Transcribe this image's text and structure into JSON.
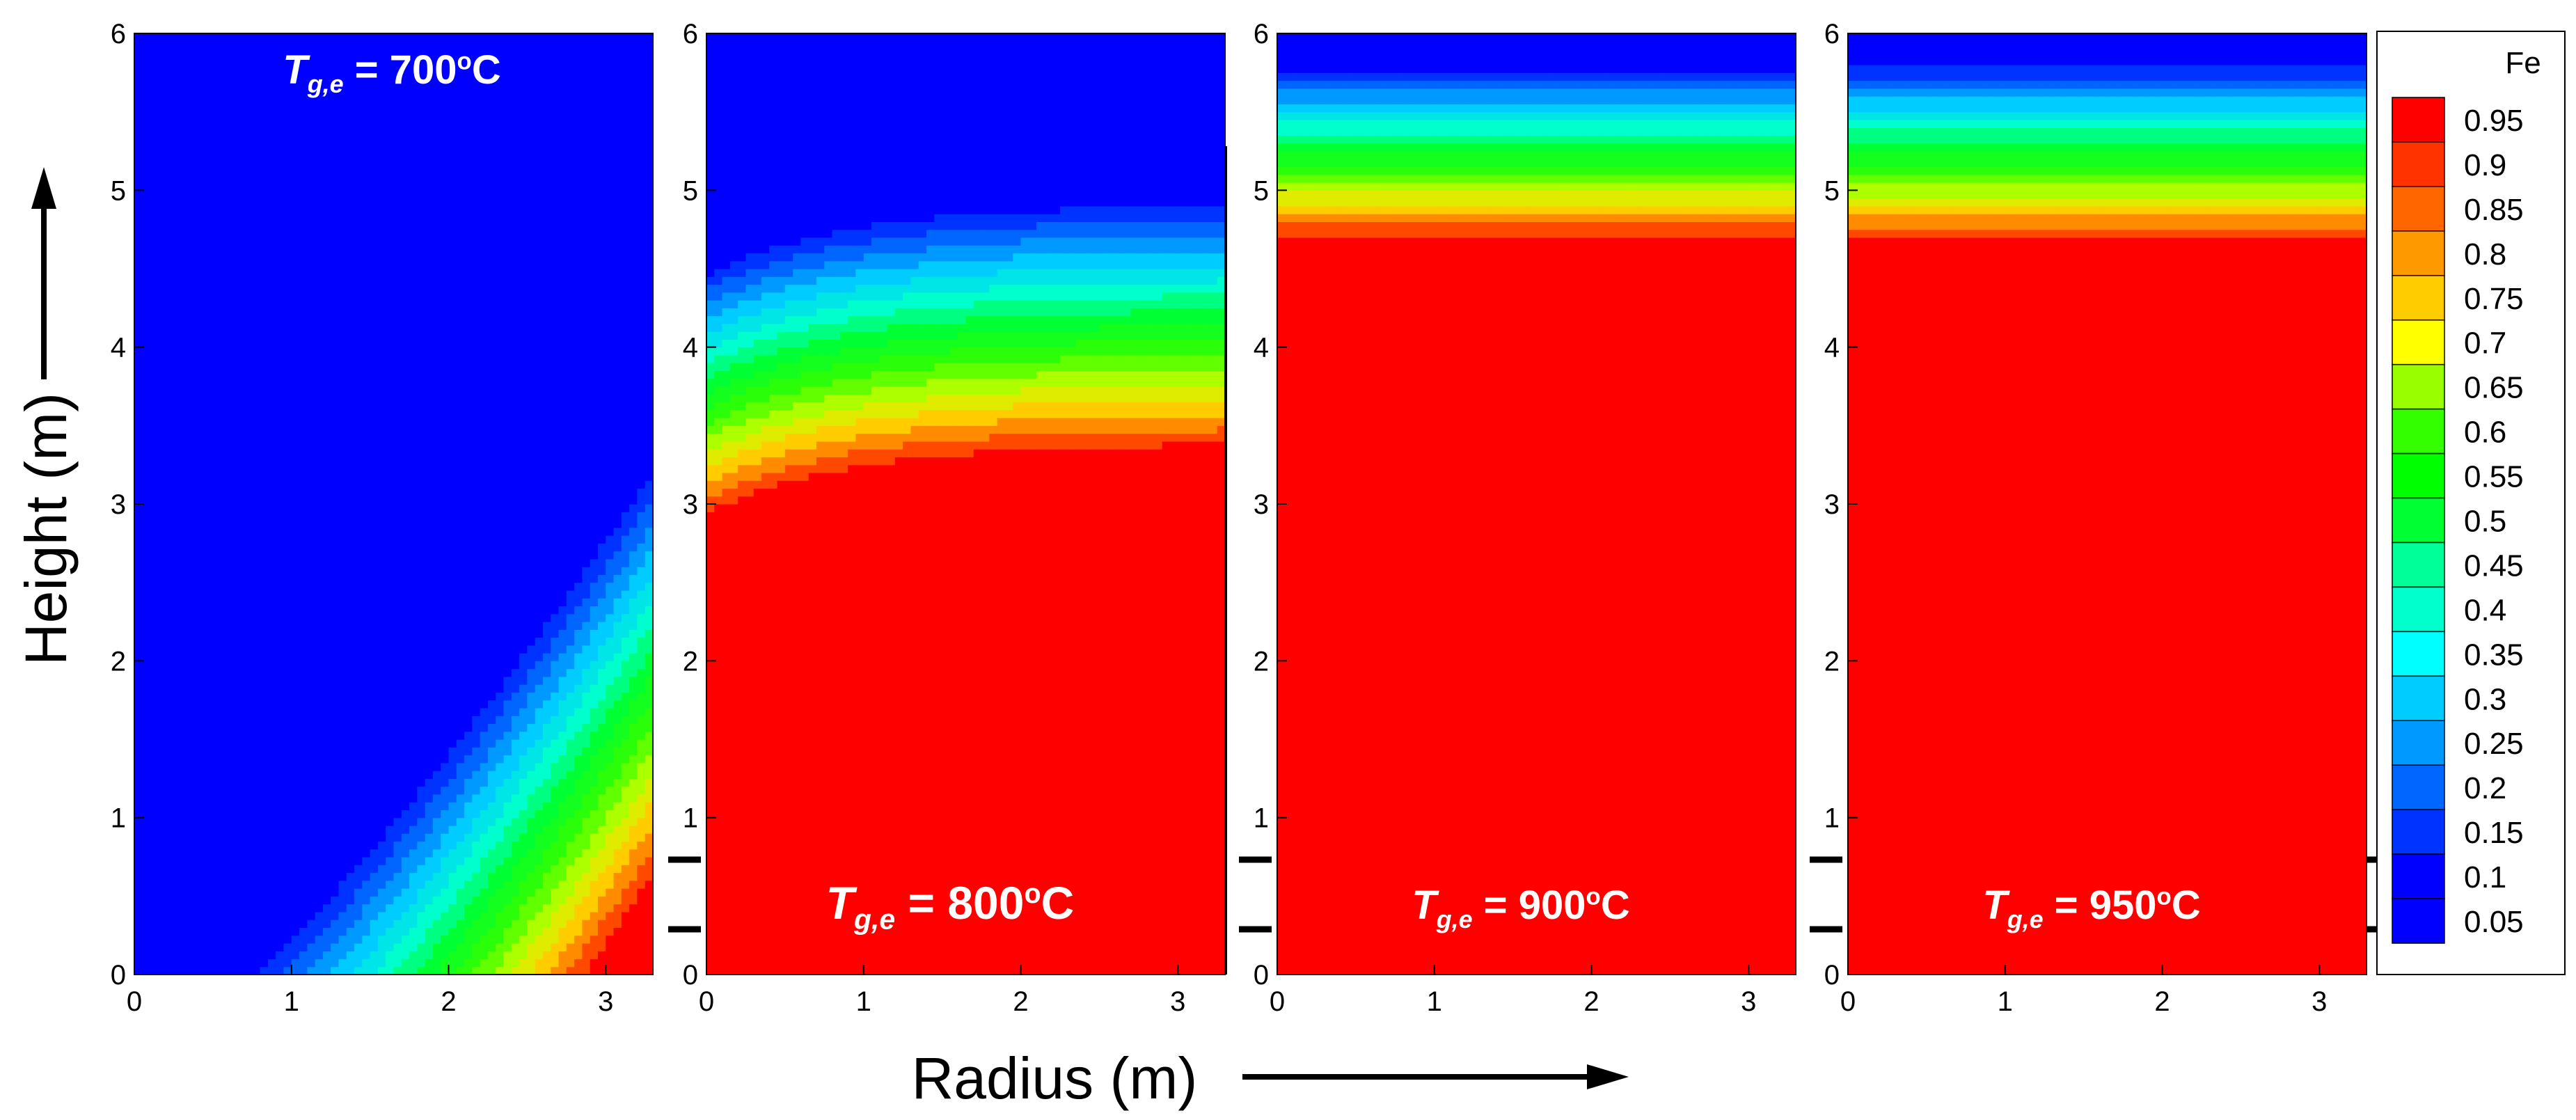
{
  "chart_data": {
    "type": "heatmap",
    "variable": "Fe",
    "xlabel": "Radius (m)",
    "ylabel": "Height (m)",
    "xlim": [
      0,
      3.3
    ],
    "ylim": [
      0,
      6
    ],
    "xticks": [
      0,
      1,
      2,
      3
    ],
    "yticks": [
      0,
      1,
      2,
      3,
      4,
      5,
      6
    ],
    "panels": [
      {
        "label_var": "T",
        "label_sub": "g,e",
        "label_eq": " = 700",
        "label_sup": "o",
        "label_unit": "C",
        "label_pos": "top"
      },
      {
        "label_var": "T",
        "label_sub": "g,e",
        "label_eq": " = 800",
        "label_sup": "o",
        "label_unit": "C",
        "label_pos": "bottom"
      },
      {
        "label_var": "T",
        "label_sub": "g,e",
        "label_eq": " = 900",
        "label_sup": "o",
        "label_unit": "C",
        "label_pos": "bottom"
      },
      {
        "label_var": "T",
        "label_sub": "g,e",
        "label_eq": " = 950",
        "label_sup": "o",
        "label_unit": "C",
        "label_pos": "bottom"
      }
    ],
    "legend": {
      "title": "Fe",
      "levels": [
        "0.95",
        "0.9",
        "0.85",
        "0.8",
        "0.75",
        "0.7",
        "0.65",
        "0.6",
        "0.55",
        "0.5",
        "0.45",
        "0.4",
        "0.35",
        "0.3",
        "0.25",
        "0.2",
        "0.15",
        "0.1",
        "0.05"
      ],
      "colors": [
        "#ff0000",
        "#ff3300",
        "#ff6600",
        "#ff9900",
        "#ffcc00",
        "#ffff00",
        "#99ff00",
        "#33ff00",
        "#00ff00",
        "#00ff33",
        "#00ff99",
        "#00ffcc",
        "#00ffff",
        "#00ccff",
        "#0099ff",
        "#0066ff",
        "#0033ff",
        "#0000ff",
        "#0000ff"
      ]
    }
  }
}
